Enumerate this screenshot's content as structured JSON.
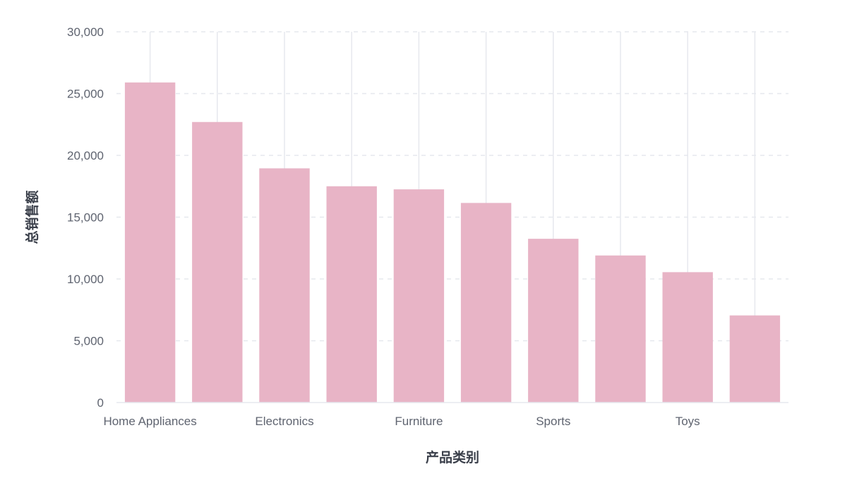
{
  "chart_data": {
    "type": "bar",
    "xlabel": "产品类别",
    "ylabel": "总销售额",
    "ylim": [
      0,
      30000
    ],
    "yticks": [
      0,
      5000,
      10000,
      15000,
      20000,
      25000,
      30000
    ],
    "ytick_labels": [
      "0",
      "5,000",
      "10,000",
      "15,000",
      "20,000",
      "25,000",
      "30,000"
    ],
    "categories": [
      "Home Appliances",
      "",
      "Electronics",
      "",
      "Furniture",
      "",
      "Sports",
      "",
      "Toys",
      ""
    ],
    "values": [
      25900,
      22700,
      18950,
      17500,
      17250,
      16150,
      13250,
      11900,
      10550,
      7050
    ],
    "bar_color": "#e8b4c6",
    "grid": true,
    "legend": "none"
  }
}
